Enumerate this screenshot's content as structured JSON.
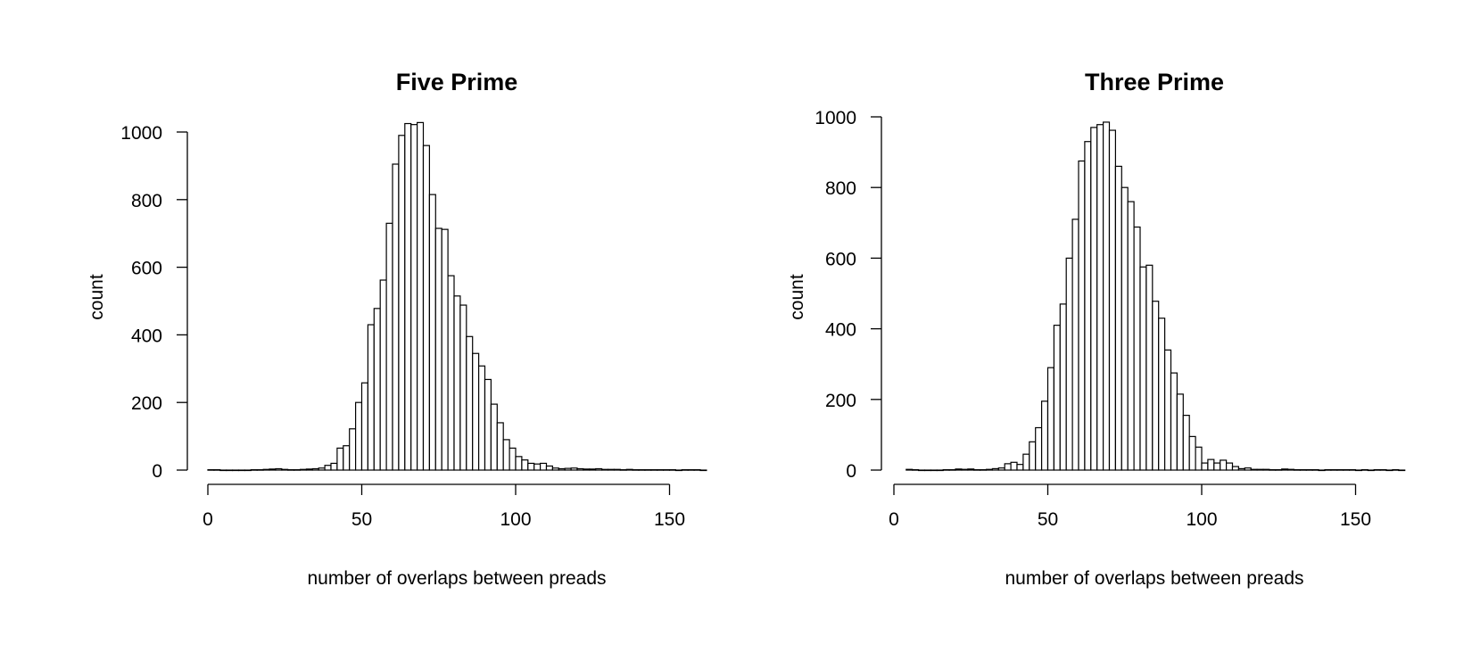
{
  "chart_data": [
    {
      "type": "bar",
      "title": "Five Prime",
      "xlabel": "number of overlaps between preads",
      "ylabel": "count",
      "bin_width": 2,
      "xlim": [
        0,
        162
      ],
      "ylim": [
        0,
        1000
      ],
      "xticks": [
        0,
        50,
        100,
        150
      ],
      "yticks": [
        0,
        200,
        400,
        600,
        800,
        1000
      ],
      "grid": false,
      "legend": "none",
      "bins_start": [
        0,
        2,
        4,
        6,
        8,
        10,
        12,
        14,
        16,
        18,
        20,
        22,
        24,
        26,
        28,
        30,
        32,
        34,
        36,
        38,
        40,
        42,
        44,
        46,
        48,
        50,
        52,
        54,
        56,
        58,
        60,
        62,
        64,
        66,
        68,
        70,
        72,
        74,
        76,
        78,
        80,
        82,
        84,
        86,
        88,
        90,
        92,
        94,
        96,
        98,
        100,
        102,
        104,
        106,
        108,
        110,
        112,
        114,
        116,
        118,
        120,
        122,
        124,
        126,
        128,
        130,
        132,
        134,
        136,
        138,
        140,
        142,
        144,
        146,
        148,
        150,
        152,
        154,
        156,
        158,
        160
      ],
      "values": [
        1,
        1,
        0,
        0,
        0,
        0,
        0,
        1,
        1,
        2,
        3,
        4,
        2,
        1,
        1,
        2,
        3,
        4,
        6,
        14,
        20,
        65,
        72,
        122,
        200,
        258,
        430,
        478,
        562,
        730,
        905,
        990,
        1025,
        1022,
        1028,
        960,
        815,
        715,
        712,
        575,
        515,
        488,
        395,
        345,
        308,
        268,
        195,
        140,
        90,
        65,
        40,
        30,
        20,
        18,
        20,
        12,
        6,
        4,
        5,
        6,
        4,
        3,
        3,
        4,
        2,
        2,
        2,
        1,
        2,
        1,
        1,
        1,
        1,
        1,
        1,
        1,
        0,
        1,
        1,
        1,
        0
      ]
    },
    {
      "type": "bar",
      "title": "Three Prime",
      "xlabel": "number of overlaps between preads",
      "ylabel": "count",
      "bin_width": 2,
      "xlim": [
        0,
        166
      ],
      "ylim": [
        0,
        1000
      ],
      "xticks": [
        0,
        50,
        100,
        150
      ],
      "yticks": [
        0,
        200,
        400,
        600,
        800,
        1000
      ],
      "grid": false,
      "legend": "none",
      "bins_start": [
        4,
        6,
        8,
        10,
        12,
        14,
        16,
        18,
        20,
        22,
        24,
        26,
        28,
        30,
        32,
        34,
        36,
        38,
        40,
        42,
        44,
        46,
        48,
        50,
        52,
        54,
        56,
        58,
        60,
        62,
        64,
        66,
        68,
        70,
        72,
        74,
        76,
        78,
        80,
        82,
        84,
        86,
        88,
        90,
        92,
        94,
        96,
        98,
        100,
        102,
        104,
        106,
        108,
        110,
        112,
        114,
        116,
        118,
        120,
        122,
        124,
        126,
        128,
        130,
        132,
        134,
        136,
        138,
        140,
        142,
        144,
        146,
        148,
        150,
        152,
        154,
        156,
        158,
        160,
        162,
        164
      ],
      "values": [
        2,
        1,
        0,
        0,
        0,
        0,
        1,
        1,
        3,
        2,
        3,
        1,
        1,
        2,
        4,
        6,
        18,
        22,
        16,
        45,
        80,
        120,
        195,
        290,
        410,
        470,
        600,
        710,
        875,
        930,
        970,
        978,
        985,
        962,
        860,
        800,
        760,
        688,
        575,
        580,
        478,
        430,
        340,
        275,
        215,
        155,
        95,
        65,
        20,
        30,
        20,
        28,
        20,
        10,
        4,
        6,
        2,
        2,
        2,
        1,
        1,
        3,
        2,
        1,
        1,
        1,
        1,
        0,
        1,
        1,
        1,
        1,
        1,
        0,
        1,
        0,
        1,
        1,
        0,
        1,
        0
      ]
    }
  ]
}
